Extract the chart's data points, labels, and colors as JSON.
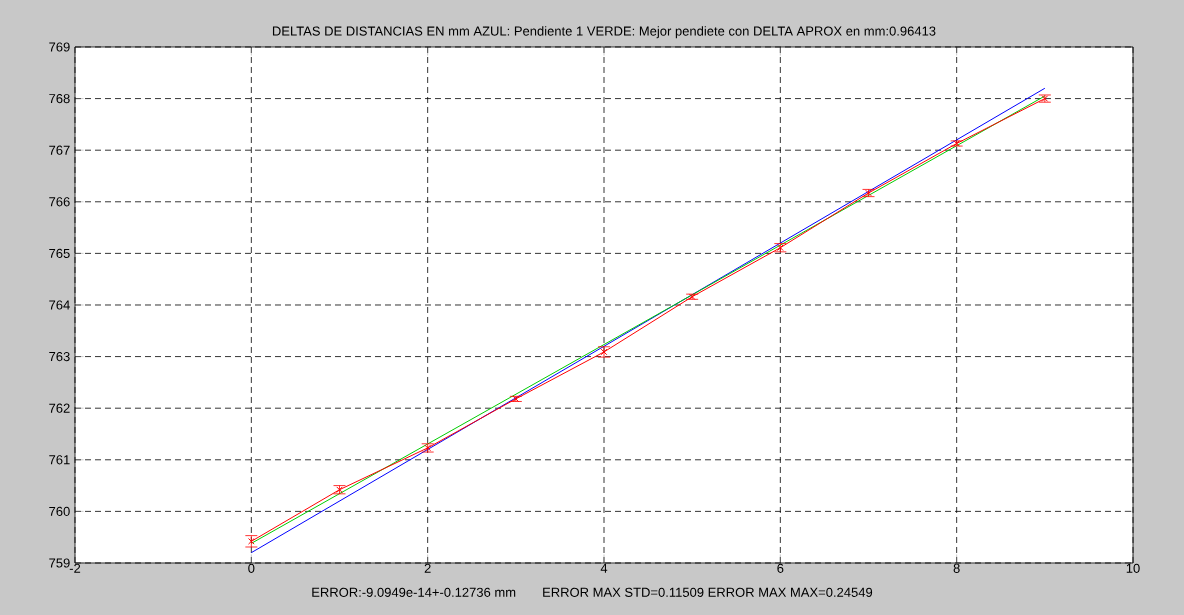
{
  "chart_data": {
    "type": "line",
    "title": "DELTAS DE DISTANCIAS EN mm AZUL: Pendiente 1 VERDE: Mejor pendiete con DELTA APROX en mm:0.96413",
    "annotations": [
      "ERROR:-9.0949e-14+-0.12736 mm",
      "ERROR MAX STD=0.11509  ERROR MAX MAX=0.24549"
    ],
    "xlim": [
      -2,
      10
    ],
    "ylim": [
      759,
      769
    ],
    "xticks": [
      -2,
      0,
      2,
      4,
      6,
      8,
      10
    ],
    "yticks": [
      759,
      760,
      761,
      762,
      763,
      764,
      765,
      766,
      767,
      768,
      769
    ],
    "grid": true,
    "line_style": "solid",
    "series": [
      {
        "color": "#0000ff",
        "x": [
          0,
          9
        ],
        "values": [
          759.2,
          768.2
        ],
        "marker": "none"
      },
      {
        "color": "#00cc00",
        "x": [
          0,
          9
        ],
        "values": [
          759.38,
          768.05
        ],
        "marker": "none"
      },
      {
        "color": "#ff0000",
        "x": [
          0,
          1,
          2,
          3,
          4,
          5,
          6,
          7,
          8,
          9
        ],
        "values": [
          759.42,
          760.42,
          761.23,
          762.18,
          763.09,
          764.16,
          765.11,
          766.17,
          767.13,
          768.0
        ],
        "errors": [
          0.11,
          0.08,
          0.08,
          0.05,
          0.1,
          0.05,
          0.08,
          0.07,
          0.05,
          0.07
        ],
        "marker": "cross"
      }
    ]
  }
}
